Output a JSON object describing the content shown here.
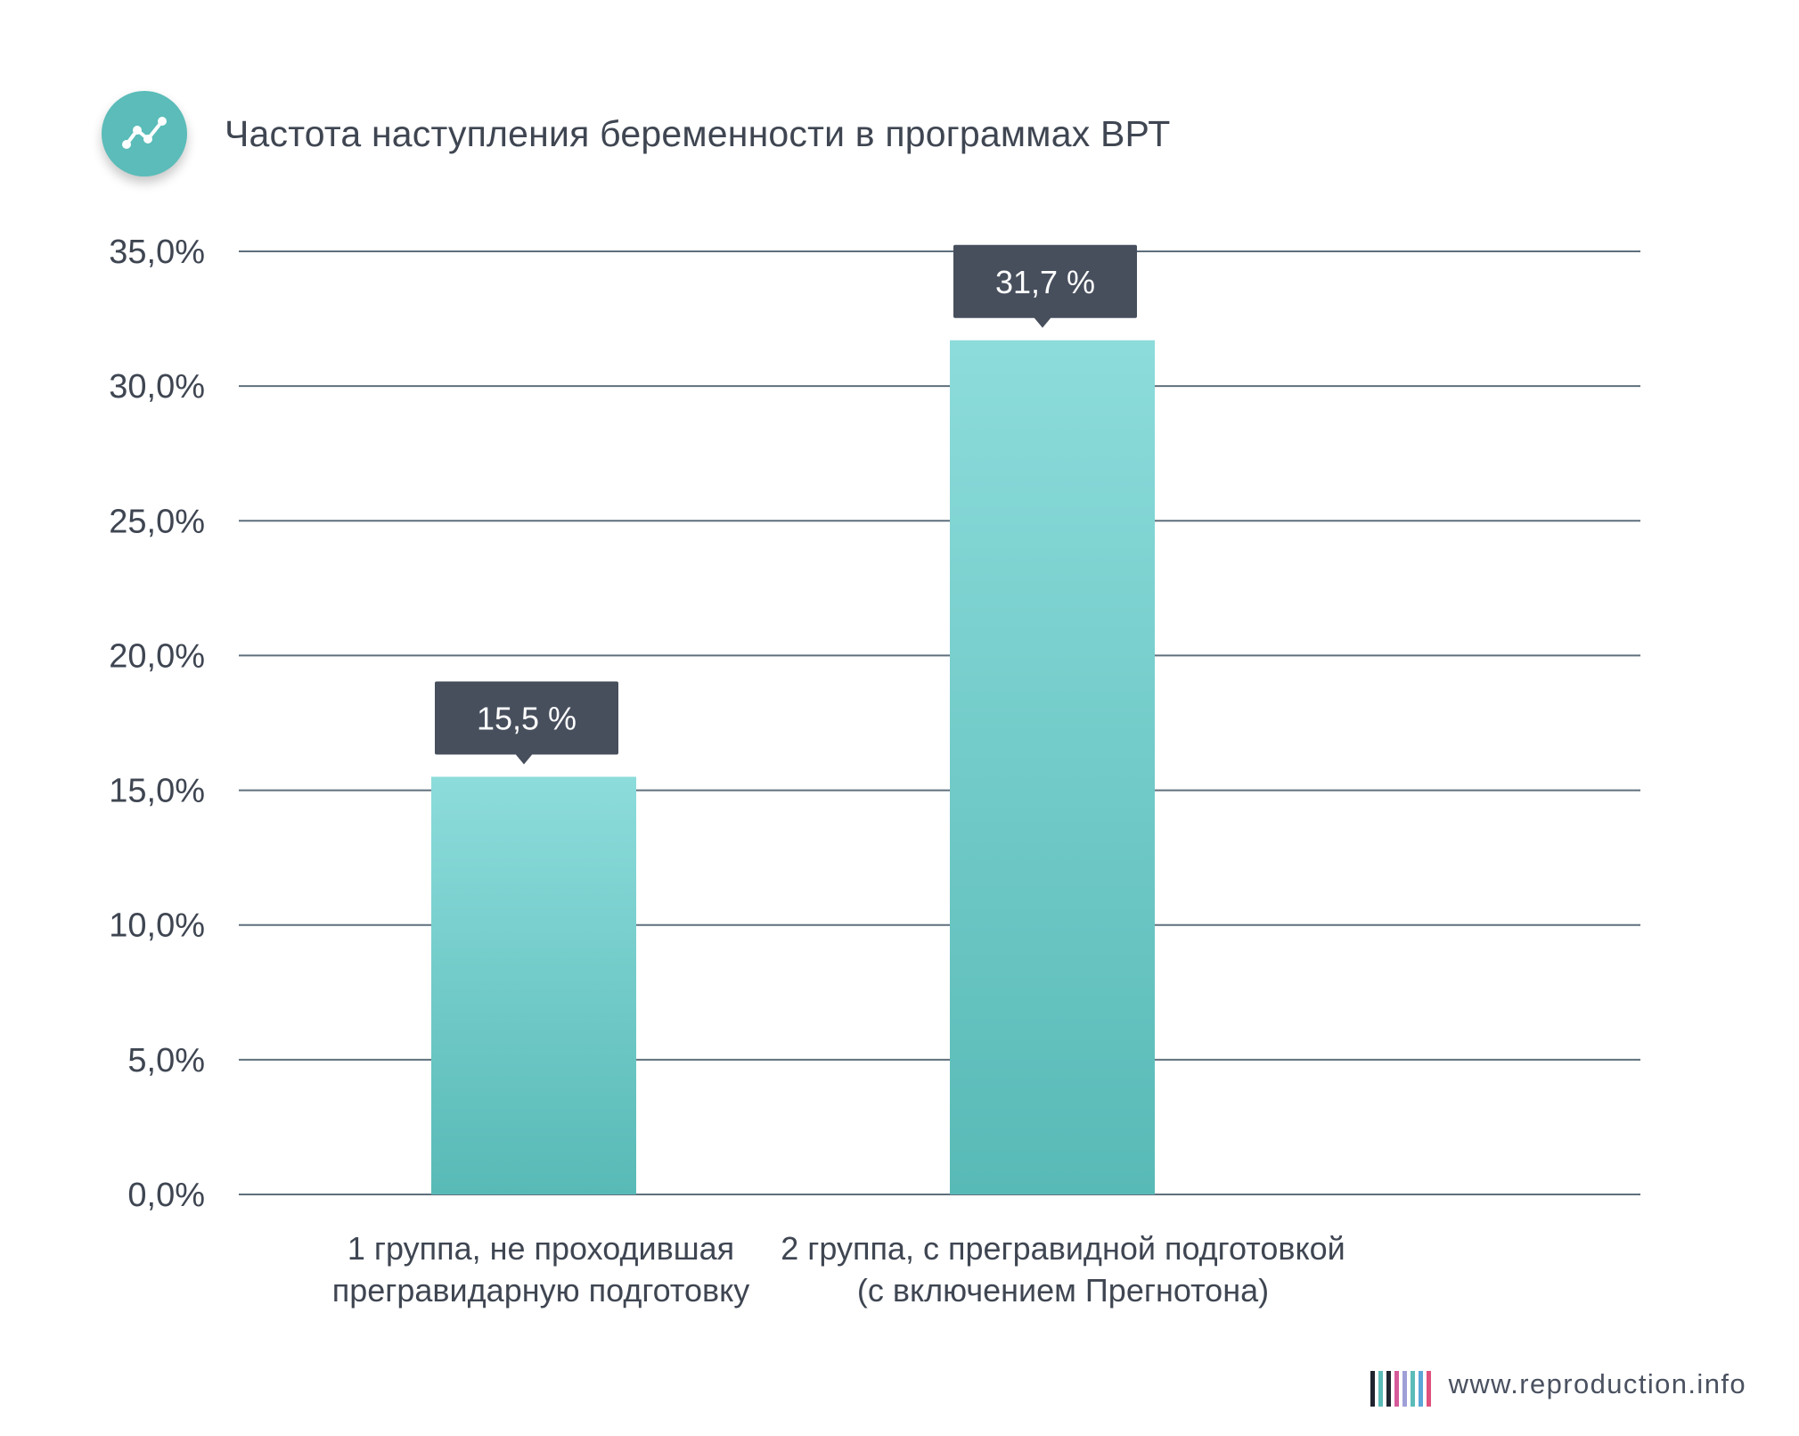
{
  "header": {
    "title": "Частота наступления беременности в программах ВРТ",
    "icon": "line-chart-icon"
  },
  "footer": {
    "site": "www.reproduction.info",
    "barcode_colors": [
      "#1f2430",
      "#5bbcb9",
      "#1f2430",
      "#d65a9a",
      "#9f9fd8",
      "#5bbcb9",
      "#5aa7d8",
      "#e0527d"
    ]
  },
  "colors": {
    "bar_top": "#8cdcdb",
    "bar_bottom": "#58bab6",
    "label_box": "#474f5d",
    "grid": "#5f6f7c",
    "accent": "#5bbcb9"
  },
  "chart_data": {
    "type": "bar",
    "title": "Частота наступления беременности в программах ВРТ",
    "categories": [
      [
        "1 группа, не  проходившая",
        "прегравидарную подготовку"
      ],
      [
        "2 группа, с прегравидной подготовкой",
        "(с включением Прегнотона)"
      ]
    ],
    "values": [
      15.5,
      31.7
    ],
    "data_labels": [
      "15,5 %",
      "31,7 %"
    ],
    "y_ticks": [
      "0,0%",
      "5,0%",
      "10,0%",
      "15,0%",
      "20,0%",
      "25,0%",
      "30,0%",
      "35,0%"
    ],
    "y_tick_values": [
      0,
      5,
      10,
      15,
      20,
      25,
      30,
      35
    ],
    "ylim": [
      0,
      35
    ],
    "xlabel": "",
    "ylabel": "",
    "grid": true,
    "legend": "none"
  }
}
